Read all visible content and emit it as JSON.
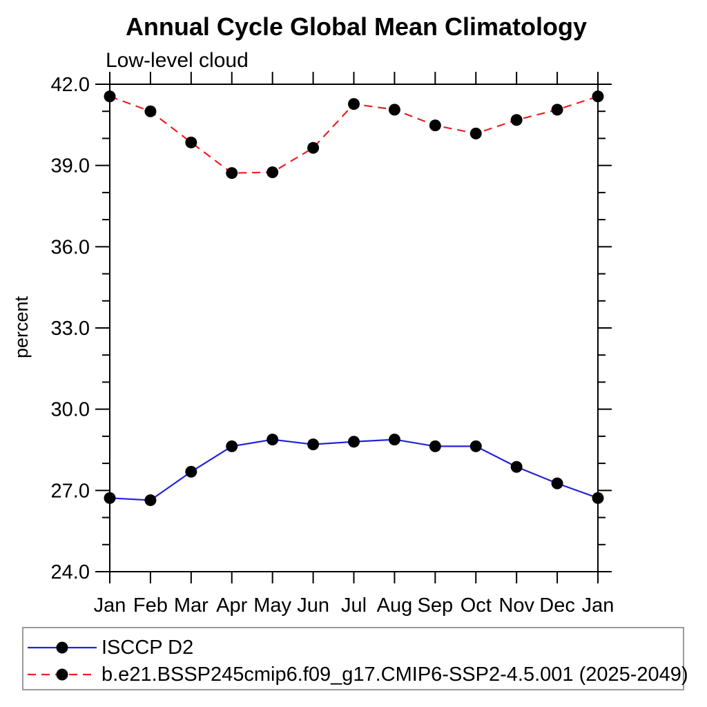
{
  "chart": {
    "title": "Annual Cycle Global Mean Climatology",
    "subtitle": "Low-level cloud",
    "ylabel": "percent",
    "chart_data": {
      "type": "line",
      "categories": [
        "Jan",
        "Feb",
        "Mar",
        "Apr",
        "May",
        "Jun",
        "Jul",
        "Aug",
        "Sep",
        "Oct",
        "Nov",
        "Dec",
        "Jan"
      ],
      "series": [
        {
          "name": "ISCCP D2",
          "color": "#2222dd",
          "line_style": "solid",
          "marker": "filled-circle",
          "marker_color": "#000000",
          "values": [
            26.72,
            26.64,
            27.69,
            28.63,
            28.88,
            28.7,
            28.8,
            28.88,
            28.63,
            28.63,
            27.87,
            27.26,
            26.72
          ]
        },
        {
          "name": "b.e21.BSSP245cmip6.f09_g17.CMIP6-SSP2-4.5.001 (2025-2049)",
          "color": "#ee1f1f",
          "line_style": "dashed",
          "marker": "filled-circle",
          "marker_color": "#000000",
          "values": [
            41.55,
            41.0,
            39.85,
            38.72,
            38.75,
            39.65,
            41.27,
            41.06,
            40.48,
            40.18,
            40.68,
            41.06,
            41.55
          ]
        }
      ],
      "ylim": [
        24.0,
        42.0
      ],
      "y_major_ticks": [
        24,
        27,
        30,
        33,
        36,
        39,
        42
      ],
      "y_major_tick_labels": [
        "24.0",
        "27.0",
        "30.0",
        "33.0",
        "36.0",
        "39.0",
        "42.0"
      ],
      "y_minor_step": 1,
      "grid": "off",
      "legend_position": "bottom",
      "frame_color": "#000000"
    }
  },
  "legend": {
    "entries": [
      {
        "label": "ISCCP D2"
      },
      {
        "label": "b.e21.BSSP245cmip6.f09_g17.CMIP6-SSP2-4.5.001 (2025-2049)"
      }
    ]
  }
}
